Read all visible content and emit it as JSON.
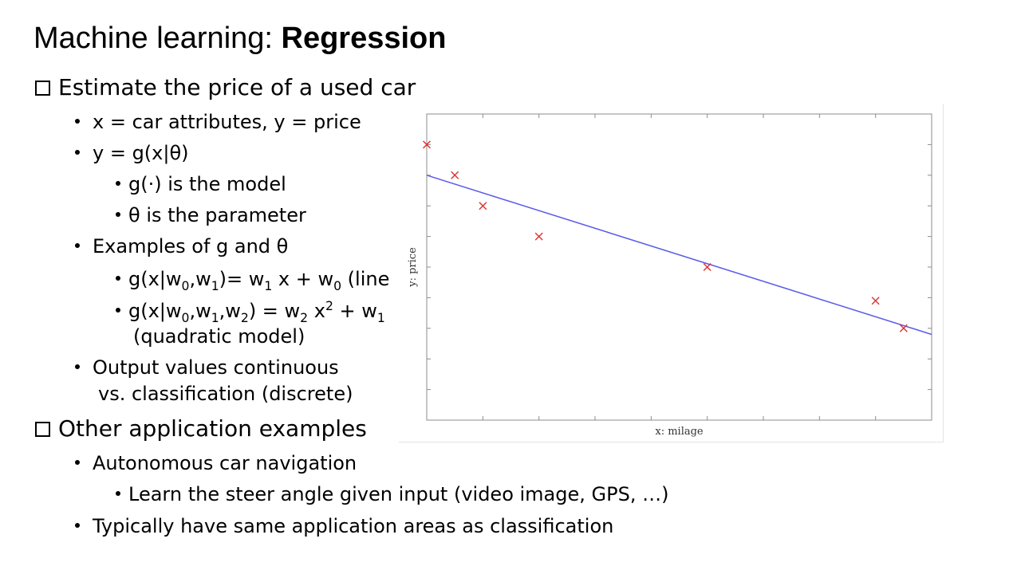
{
  "slide": {
    "title_prefix": "Machine learning: ",
    "title_bold": "Regression"
  },
  "bullets": {
    "estimate_price": "Estimate the price of a used car",
    "x_def": "x = car attributes, y = price",
    "y_def": "y = g(x|θ)",
    "g_model": "g(·) is the model",
    "theta_param": "θ is the parameter",
    "examples": "Examples of g and θ",
    "linear_a": "g(x|w",
    "linear_b": "0",
    "linear_c": ",w",
    "linear_d": "1",
    "linear_e": ")= w",
    "linear_f": "1",
    "linear_g": " x + w",
    "linear_h": "0",
    "linear_i": " (line",
    "quad_a": "g(x|w",
    "quad_b": "0",
    "quad_c": ",w",
    "quad_d": "1",
    "quad_e": ",w",
    "quad_f": "2",
    "quad_g": ") = w",
    "quad_h": "2",
    "quad_i": " x",
    "quad_j": "2",
    "quad_k": " + w",
    "quad_l": "1",
    "quad_model": "(quadratic model)",
    "output_1": "Output values continuous",
    "output_2": "vs. classification (discrete)",
    "other_apps": "Other application examples",
    "autonomous": "Autonomous car navigation",
    "steer": "Learn the steer angle given input (video image, GPS, …)",
    "typically": "Typically have same application areas as classification"
  },
  "chart_data": {
    "type": "scatter",
    "xlabel": "x: milage",
    "ylabel": "y: price",
    "xlim": [
      0,
      9
    ],
    "ylim": [
      0,
      10
    ],
    "points": [
      {
        "x": 0.0,
        "y": 9.0
      },
      {
        "x": 0.5,
        "y": 8.0
      },
      {
        "x": 1.0,
        "y": 7.0
      },
      {
        "x": 2.0,
        "y": 6.0
      },
      {
        "x": 5.0,
        "y": 5.0
      },
      {
        "x": 8.0,
        "y": 3.9
      },
      {
        "x": 8.5,
        "y": 3.0
      }
    ],
    "fit_line": {
      "x": [
        0,
        9
      ],
      "y": [
        8.0,
        2.8
      ]
    },
    "grid": false,
    "colors": {
      "points": "#e03030",
      "line": "#5b5bea",
      "axes": "#8c8c8c"
    }
  }
}
